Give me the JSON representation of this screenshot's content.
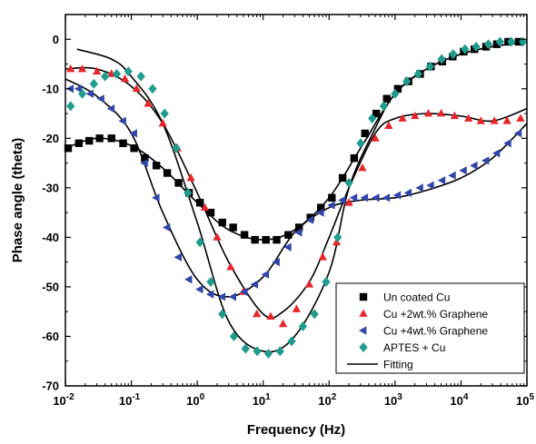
{
  "chart_data": {
    "type": "scatter",
    "title": "",
    "xlabel": "Frequency (Hz)",
    "ylabel": "Phase angle (theta)",
    "xscale": "log",
    "xlim": [
      0.01,
      100000
    ],
    "ylim": [
      -70,
      5
    ],
    "x_ticks": [
      {
        "value": 0.01,
        "base": "10",
        "exp": "-2"
      },
      {
        "value": 0.1,
        "base": "10",
        "exp": "-1"
      },
      {
        "value": 1,
        "base": "10",
        "exp": "0"
      },
      {
        "value": 10,
        "base": "10",
        "exp": "1"
      },
      {
        "value": 100,
        "base": "10",
        "exp": "2"
      },
      {
        "value": 1000,
        "base": "10",
        "exp": "3"
      },
      {
        "value": 10000,
        "base": "10",
        "exp": "4"
      },
      {
        "value": 100000,
        "base": "10",
        "exp": "5"
      }
    ],
    "y_ticks": [
      "0",
      "-10",
      "-20",
      "-30",
      "-40",
      "-50",
      "-60",
      "-70"
    ],
    "grid": false,
    "legend_position": "bottom-right",
    "series": [
      {
        "name": "Un coated Cu",
        "marker": "square",
        "color": "#000000",
        "points": [
          [
            0.011,
            -22
          ],
          [
            0.016,
            -21
          ],
          [
            0.023,
            -20.5
          ],
          [
            0.033,
            -20
          ],
          [
            0.05,
            -20
          ],
          [
            0.075,
            -21
          ],
          [
            0.11,
            -22
          ],
          [
            0.16,
            -24
          ],
          [
            0.24,
            -25.5
          ],
          [
            0.35,
            -27
          ],
          [
            0.52,
            -29
          ],
          [
            0.75,
            -31
          ],
          [
            1.1,
            -33
          ],
          [
            1.6,
            -35
          ],
          [
            2.4,
            -37
          ],
          [
            3.5,
            -38
          ],
          [
            5.2,
            -39.5
          ],
          [
            7.5,
            -40.5
          ],
          [
            11,
            -40.5
          ],
          [
            16,
            -40.5
          ],
          [
            24,
            -39.5
          ],
          [
            35,
            -38
          ],
          [
            52,
            -36
          ],
          [
            75,
            -34
          ],
          [
            110,
            -32
          ],
          [
            160,
            -28
          ],
          [
            240,
            -24
          ],
          [
            350,
            -19
          ],
          [
            520,
            -15
          ],
          [
            750,
            -12
          ],
          [
            1100,
            -10
          ],
          [
            1600,
            -8.5
          ],
          [
            2400,
            -7
          ],
          [
            3500,
            -5.5
          ],
          [
            5200,
            -4.5
          ],
          [
            7500,
            -3.5
          ],
          [
            11000,
            -2.5
          ],
          [
            16000,
            -2
          ],
          [
            24000,
            -1.5
          ],
          [
            35000,
            -1
          ],
          [
            52000,
            -0.5
          ],
          [
            75000,
            -0.5
          ]
        ]
      },
      {
        "name": "Cu +2wt.% Graphene",
        "marker": "triangle-up",
        "color": "#e8242b",
        "points": [
          [
            0.012,
            -6
          ],
          [
            0.018,
            -6
          ],
          [
            0.03,
            -6.5
          ],
          [
            0.05,
            -7
          ],
          [
            0.08,
            -8
          ],
          [
            0.12,
            -10
          ],
          [
            0.18,
            -13
          ],
          [
            0.3,
            -17
          ],
          [
            0.5,
            -22
          ],
          [
            0.8,
            -28
          ],
          [
            1.3,
            -34
          ],
          [
            2,
            -40
          ],
          [
            3.2,
            -46
          ],
          [
            5,
            -51
          ],
          [
            8,
            -55.5
          ],
          [
            13,
            -56
          ],
          [
            20,
            -57.5
          ],
          [
            32,
            -54.5
          ],
          [
            50,
            -49.5
          ],
          [
            80,
            -44
          ],
          [
            130,
            -41
          ],
          [
            200,
            -33
          ],
          [
            320,
            -26
          ],
          [
            500,
            -20
          ],
          [
            800,
            -17.5
          ],
          [
            1300,
            -16
          ],
          [
            2000,
            -15.5
          ],
          [
            3200,
            -15
          ],
          [
            5000,
            -15
          ],
          [
            8000,
            -15.5
          ],
          [
            13000,
            -16
          ],
          [
            20000,
            -16.5
          ],
          [
            32000,
            -16.5
          ],
          [
            50000,
            -16.5
          ],
          [
            80000,
            -16
          ]
        ]
      },
      {
        "name": "Cu +4wt.% Graphene",
        "marker": "triangle-left",
        "color": "#3245a8",
        "points": [
          [
            0.012,
            -10
          ],
          [
            0.016,
            -10
          ],
          [
            0.024,
            -11
          ],
          [
            0.035,
            -12
          ],
          [
            0.05,
            -14
          ],
          [
            0.075,
            -16.5
          ],
          [
            0.11,
            -19
          ],
          [
            0.16,
            -25
          ],
          [
            0.24,
            -32
          ],
          [
            0.35,
            -38
          ],
          [
            0.52,
            -44
          ],
          [
            0.75,
            -48.5
          ],
          [
            1.1,
            -50.5
          ],
          [
            1.6,
            -51.5
          ],
          [
            2.4,
            -52
          ],
          [
            3.5,
            -52
          ],
          [
            5.2,
            -51
          ],
          [
            7.5,
            -49.5
          ],
          [
            11,
            -47.5
          ],
          [
            16,
            -45
          ],
          [
            24,
            -42
          ],
          [
            35,
            -39
          ],
          [
            52,
            -36.5
          ],
          [
            75,
            -35
          ],
          [
            110,
            -33.5
          ],
          [
            160,
            -32.5
          ],
          [
            240,
            -32
          ],
          [
            350,
            -32
          ],
          [
            520,
            -32
          ],
          [
            750,
            -32
          ],
          [
            1100,
            -31.5
          ],
          [
            1600,
            -31
          ],
          [
            2400,
            -30
          ],
          [
            3500,
            -29.5
          ],
          [
            5200,
            -28.5
          ],
          [
            7500,
            -27.5
          ],
          [
            11000,
            -26.5
          ],
          [
            16000,
            -25.5
          ],
          [
            24000,
            -24.5
          ],
          [
            35000,
            -23
          ],
          [
            52000,
            -21
          ],
          [
            75000,
            -19
          ]
        ]
      },
      {
        "name": "APTES + Cu",
        "marker": "diamond",
        "color": "#1f9c8c",
        "points": [
          [
            0.012,
            -13.5
          ],
          [
            0.018,
            -11
          ],
          [
            0.027,
            -9
          ],
          [
            0.04,
            -7.5
          ],
          [
            0.06,
            -7
          ],
          [
            0.09,
            -6.5
          ],
          [
            0.14,
            -7.5
          ],
          [
            0.21,
            -10
          ],
          [
            0.32,
            -15
          ],
          [
            0.48,
            -22
          ],
          [
            0.72,
            -31
          ],
          [
            1.1,
            -41
          ],
          [
            1.6,
            -49
          ],
          [
            2.4,
            -55.5
          ],
          [
            3.6,
            -60
          ],
          [
            5.4,
            -62.5
          ],
          [
            8.1,
            -63
          ],
          [
            12,
            -63.5
          ],
          [
            18,
            -63
          ],
          [
            27,
            -61
          ],
          [
            40,
            -58
          ],
          [
            60,
            -55.5
          ],
          [
            90,
            -49
          ],
          [
            135,
            -40
          ],
          [
            200,
            -29
          ],
          [
            300,
            -21
          ],
          [
            450,
            -16
          ],
          [
            675,
            -13.5
          ],
          [
            1000,
            -11
          ],
          [
            1500,
            -8.5
          ],
          [
            2250,
            -7
          ],
          [
            3400,
            -5.5
          ],
          [
            5100,
            -4
          ],
          [
            7600,
            -3
          ],
          [
            11500,
            -2
          ],
          [
            17000,
            -1.5
          ],
          [
            26000,
            -1
          ],
          [
            39000,
            -0.5
          ],
          [
            58000,
            -0.5
          ],
          [
            87000,
            -0.5
          ]
        ]
      }
    ],
    "fitting": {
      "name": "Fitting",
      "color": "#000000",
      "curves": [
        [
          [
            0.01,
            -22
          ],
          [
            0.03,
            -20
          ],
          [
            0.1,
            -21.5
          ],
          [
            0.3,
            -26
          ],
          [
            1,
            -33
          ],
          [
            3,
            -38.5
          ],
          [
            10,
            -40.5
          ],
          [
            30,
            -38.5
          ],
          [
            100,
            -32
          ],
          [
            300,
            -22
          ],
          [
            1000,
            -11
          ],
          [
            3000,
            -6
          ],
          [
            10000,
            -3
          ],
          [
            30000,
            -1.5
          ],
          [
            100000,
            -0.5
          ]
        ],
        [
          [
            0.01,
            -6
          ],
          [
            0.03,
            -6
          ],
          [
            0.1,
            -9.5
          ],
          [
            0.3,
            -17
          ],
          [
            1,
            -31
          ],
          [
            3,
            -45
          ],
          [
            10,
            -55.5
          ],
          [
            20,
            -55
          ],
          [
            50,
            -49
          ],
          [
            100,
            -40
          ],
          [
            200,
            -30
          ],
          [
            500,
            -19
          ],
          [
            1000,
            -16
          ],
          [
            3000,
            -15
          ],
          [
            10000,
            -15.5
          ],
          [
            30000,
            -16.5
          ],
          [
            100000,
            -14
          ]
        ],
        [
          [
            0.01,
            -8
          ],
          [
            0.03,
            -11.5
          ],
          [
            0.1,
            -19
          ],
          [
            0.3,
            -35
          ],
          [
            1,
            -48.5
          ],
          [
            3,
            -52
          ],
          [
            10,
            -48
          ],
          [
            30,
            -39
          ],
          [
            100,
            -34
          ],
          [
            300,
            -32.5
          ],
          [
            1000,
            -32
          ],
          [
            3000,
            -30.5
          ],
          [
            10000,
            -28
          ],
          [
            30000,
            -24
          ],
          [
            100000,
            -17
          ]
        ],
        [
          [
            0.015,
            -2
          ],
          [
            0.05,
            -4
          ],
          [
            0.1,
            -7.5
          ],
          [
            0.3,
            -17
          ],
          [
            1,
            -37
          ],
          [
            3,
            -57
          ],
          [
            10,
            -63
          ],
          [
            30,
            -60
          ],
          [
            100,
            -47
          ],
          [
            200,
            -30
          ],
          [
            500,
            -18
          ],
          [
            1000,
            -11
          ],
          [
            3000,
            -6
          ],
          [
            10000,
            -3
          ],
          [
            30000,
            -1.5
          ],
          [
            100000,
            -0.5
          ]
        ]
      ]
    }
  }
}
